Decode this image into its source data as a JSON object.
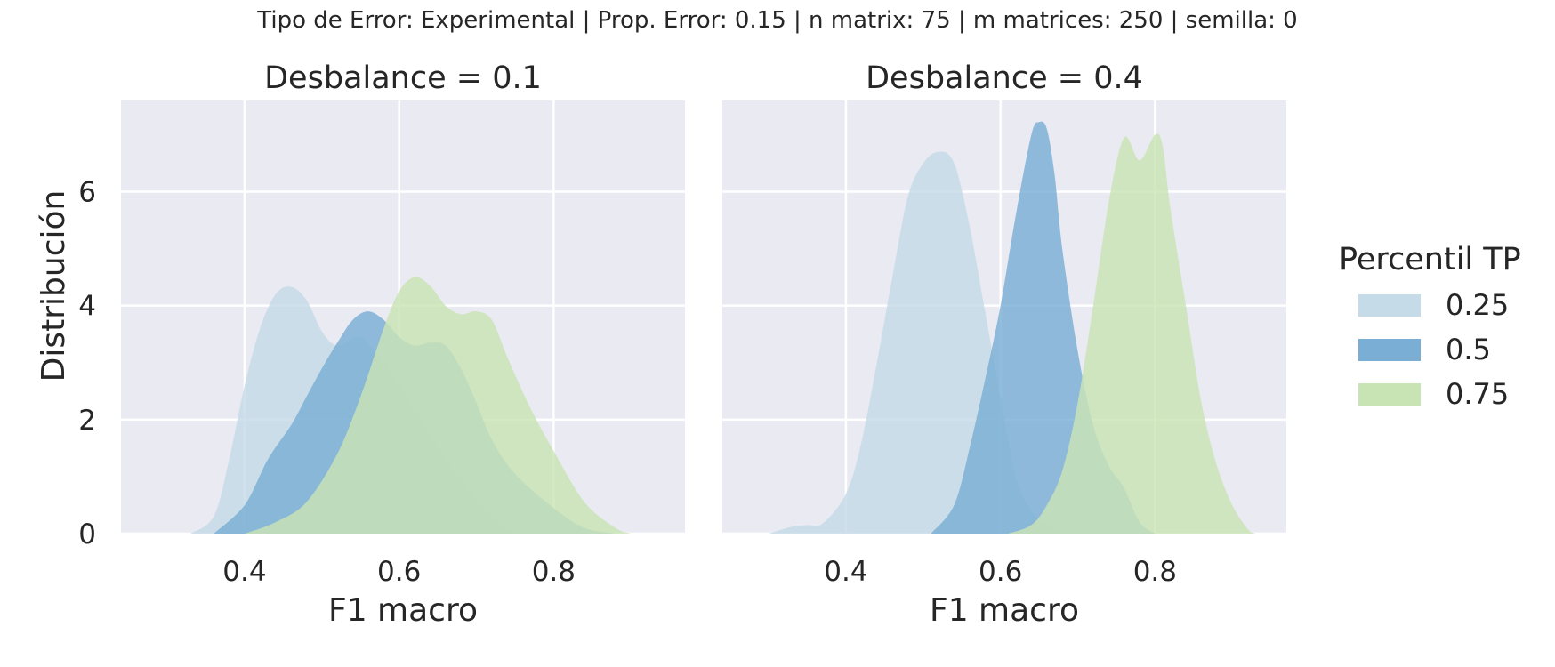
{
  "title": "Tipo de Error: Experimental | Prop. Error: 0.15 | n matrix: 75 | m matrices: 250 | semilla: 0",
  "legend": {
    "title": "Percentil TP",
    "items": [
      {
        "label": "0.25",
        "color": "#c6dbe8"
      },
      {
        "label": "0.5",
        "color": "#7aaed4"
      },
      {
        "label": "0.75",
        "color": "#c9e4b4"
      }
    ]
  },
  "chart_data": [
    {
      "type": "area",
      "title": "Desbalance = 0.1",
      "xlabel": "F1 macro",
      "ylabel": "Distribución",
      "xlim": [
        0.24,
        0.97
      ],
      "ylim": [
        0,
        7.6
      ],
      "xticks": [
        0.4,
        0.6,
        0.8
      ],
      "yticks": [
        0,
        2,
        4,
        6
      ],
      "grid": true,
      "series": [
        {
          "name": "0.25",
          "x": [
            0.33,
            0.36,
            0.38,
            0.4,
            0.42,
            0.44,
            0.46,
            0.48,
            0.5,
            0.52,
            0.55,
            0.58,
            0.6,
            0.63,
            0.66,
            0.7,
            0.73,
            0.75
          ],
          "y": [
            0.0,
            0.3,
            1.3,
            2.6,
            3.6,
            4.2,
            4.33,
            4.1,
            3.55,
            3.3,
            3.45,
            3.0,
            2.6,
            1.95,
            1.3,
            0.6,
            0.15,
            0.0
          ]
        },
        {
          "name": "0.5",
          "x": [
            0.36,
            0.4,
            0.43,
            0.46,
            0.48,
            0.5,
            0.52,
            0.54,
            0.56,
            0.58,
            0.6,
            0.62,
            0.64,
            0.66,
            0.68,
            0.7,
            0.72,
            0.75,
            0.8,
            0.84,
            0.88
          ],
          "y": [
            0.0,
            0.5,
            1.3,
            1.9,
            2.4,
            2.9,
            3.35,
            3.75,
            3.9,
            3.75,
            3.45,
            3.3,
            3.35,
            3.3,
            2.9,
            2.3,
            1.65,
            1.05,
            0.45,
            0.1,
            0.0
          ]
        },
        {
          "name": "0.75",
          "x": [
            0.4,
            0.44,
            0.48,
            0.52,
            0.55,
            0.58,
            0.6,
            0.62,
            0.64,
            0.66,
            0.68,
            0.7,
            0.72,
            0.74,
            0.77,
            0.8,
            0.84,
            0.88,
            0.9
          ],
          "y": [
            0.0,
            0.2,
            0.55,
            1.4,
            2.4,
            3.6,
            4.25,
            4.5,
            4.35,
            4.0,
            3.85,
            3.9,
            3.75,
            3.1,
            2.2,
            1.45,
            0.55,
            0.1,
            0.0
          ]
        }
      ]
    },
    {
      "type": "area",
      "title": "Desbalance = 0.4",
      "xlabel": "F1 macro",
      "ylabel": "",
      "xlim": [
        0.24,
        0.97
      ],
      "ylim": [
        0,
        7.6
      ],
      "xticks": [
        0.4,
        0.6,
        0.8
      ],
      "yticks": [
        0,
        2,
        4,
        6
      ],
      "grid": true,
      "series": [
        {
          "name": "0.25",
          "x": [
            0.3,
            0.33,
            0.35,
            0.37,
            0.4,
            0.42,
            0.44,
            0.46,
            0.48,
            0.5,
            0.52,
            0.54,
            0.56,
            0.58,
            0.6,
            0.62,
            0.64,
            0.66,
            0.68
          ],
          "y": [
            0.0,
            0.12,
            0.15,
            0.18,
            0.7,
            1.6,
            3.0,
            4.5,
            5.9,
            6.5,
            6.7,
            6.5,
            5.4,
            3.9,
            2.4,
            1.0,
            0.4,
            0.15,
            0.0
          ]
        },
        {
          "name": "0.5",
          "x": [
            0.51,
            0.54,
            0.56,
            0.58,
            0.6,
            0.62,
            0.64,
            0.65,
            0.66,
            0.67,
            0.68,
            0.7,
            0.72,
            0.74,
            0.76,
            0.78,
            0.8
          ],
          "y": [
            0.0,
            0.5,
            1.5,
            2.7,
            4.0,
            5.6,
            7.0,
            7.22,
            7.1,
            6.3,
            5.0,
            3.2,
            1.9,
            1.2,
            0.8,
            0.2,
            0.0
          ]
        },
        {
          "name": "0.75",
          "x": [
            0.61,
            0.64,
            0.66,
            0.68,
            0.7,
            0.72,
            0.74,
            0.76,
            0.78,
            0.8,
            0.81,
            0.82,
            0.84,
            0.86,
            0.88,
            0.9,
            0.92,
            0.93
          ],
          "y": [
            0.0,
            0.15,
            0.5,
            1.1,
            2.3,
            4.0,
            5.8,
            6.95,
            6.55,
            7.0,
            6.8,
            5.7,
            4.0,
            2.3,
            1.2,
            0.5,
            0.08,
            0.0
          ]
        }
      ]
    }
  ]
}
